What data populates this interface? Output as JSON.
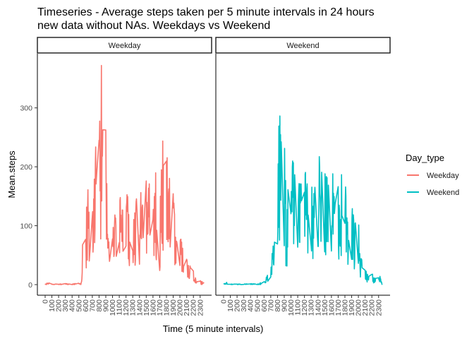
{
  "chart_data": {
    "type": "line",
    "title_lines": [
      "Timeseries - Average steps taken per 5 minute intervals in 24 hours",
      "new data without NAs. Weekdays vs Weekend"
    ],
    "xlabel": "Time (5 minute intervals)",
    "ylabel": "Mean.steps",
    "xlim": [
      -115,
      2470
    ],
    "ylim": [
      -18,
      392
    ],
    "x_ticks": [
      0,
      100,
      200,
      300,
      400,
      500,
      600,
      700,
      800,
      900,
      1000,
      1100,
      1200,
      1300,
      1400,
      1500,
      1600,
      1700,
      1800,
      1900,
      2000,
      2100,
      2200,
      2300
    ],
    "x_tick_labels": [
      "0",
      "100",
      "200",
      "300",
      "400",
      "500",
      "600",
      "700",
      "800",
      "900",
      "1000",
      "1100",
      "1200",
      "1300",
      "1400",
      "1500",
      "1600",
      "1700",
      "1800",
      "1900",
      "2000",
      "2100",
      "2200",
      "2300"
    ],
    "y_ticks": [
      0,
      100,
      200,
      300
    ],
    "y_tick_labels": [
      "0",
      "100",
      "200",
      "300"
    ],
    "grid": false,
    "legend": {
      "title": "Day_type",
      "position": "right"
    },
    "facets": [
      {
        "label": "Weekday",
        "series": "Weekday",
        "anchors": [
          [
            0,
            2
          ],
          [
            50,
            4
          ],
          [
            100,
            1
          ],
          [
            200,
            1
          ],
          [
            300,
            2
          ],
          [
            400,
            1
          ],
          [
            500,
            3
          ],
          [
            530,
            1
          ],
          [
            550,
            20
          ],
          [
            555,
            95
          ],
          [
            600,
            70
          ],
          [
            630,
            150
          ],
          [
            700,
            100
          ],
          [
            730,
            195
          ],
          [
            800,
            210
          ],
          [
            815,
            260
          ],
          [
            830,
            300
          ],
          [
            835,
            375
          ],
          [
            850,
            200
          ],
          [
            900,
            235
          ],
          [
            905,
            180
          ],
          [
            930,
            110
          ],
          [
            1000,
            90
          ],
          [
            1030,
            95
          ],
          [
            1100,
            100
          ],
          [
            1130,
            175
          ],
          [
            1200,
            155
          ],
          [
            1230,
            110
          ],
          [
            1300,
            95
          ],
          [
            1330,
            125
          ],
          [
            1400,
            130
          ],
          [
            1430,
            135
          ],
          [
            1500,
            155
          ],
          [
            1510,
            250
          ],
          [
            1530,
            150
          ],
          [
            1600,
            105
          ],
          [
            1630,
            160
          ],
          [
            1700,
            95
          ],
          [
            1730,
            190
          ],
          [
            1800,
            195
          ],
          [
            1830,
            150
          ],
          [
            1900,
            140
          ],
          [
            1930,
            80
          ],
          [
            2000,
            70
          ],
          [
            2030,
            60
          ],
          [
            2100,
            35
          ],
          [
            2130,
            30
          ],
          [
            2200,
            20
          ],
          [
            2230,
            10
          ],
          [
            2300,
            8
          ],
          [
            2355,
            3
          ]
        ]
      },
      {
        "label": "Weekend",
        "series": "Weekend",
        "anchors": [
          [
            0,
            1
          ],
          [
            50,
            5
          ],
          [
            100,
            1
          ],
          [
            300,
            1
          ],
          [
            400,
            2
          ],
          [
            500,
            1
          ],
          [
            530,
            3
          ],
          [
            600,
            5
          ],
          [
            630,
            10
          ],
          [
            700,
            25
          ],
          [
            730,
            55
          ],
          [
            800,
            190
          ],
          [
            815,
            235
          ],
          [
            830,
            215
          ],
          [
            850,
            240
          ],
          [
            900,
            210
          ],
          [
            930,
            110
          ],
          [
            1000,
            150
          ],
          [
            1030,
            180
          ],
          [
            1100,
            120
          ],
          [
            1130,
            155
          ],
          [
            1200,
            175
          ],
          [
            1230,
            150
          ],
          [
            1300,
            160
          ],
          [
            1330,
            140
          ],
          [
            1400,
            180
          ],
          [
            1430,
            165
          ],
          [
            1500,
            170
          ],
          [
            1530,
            150
          ],
          [
            1600,
            205
          ],
          [
            1630,
            160
          ],
          [
            1700,
            150
          ],
          [
            1730,
            175
          ],
          [
            1800,
            140
          ],
          [
            1830,
            110
          ],
          [
            1900,
            120
          ],
          [
            1930,
            95
          ],
          [
            2000,
            85
          ],
          [
            2030,
            45
          ],
          [
            2100,
            25
          ],
          [
            2130,
            15
          ],
          [
            2200,
            20
          ],
          [
            2230,
            10
          ],
          [
            2300,
            22
          ],
          [
            2355,
            2
          ]
        ]
      }
    ],
    "series": [
      {
        "name": "Weekday",
        "color": "#F8766D"
      },
      {
        "name": "Weekend",
        "color": "#00BFC4"
      }
    ]
  }
}
